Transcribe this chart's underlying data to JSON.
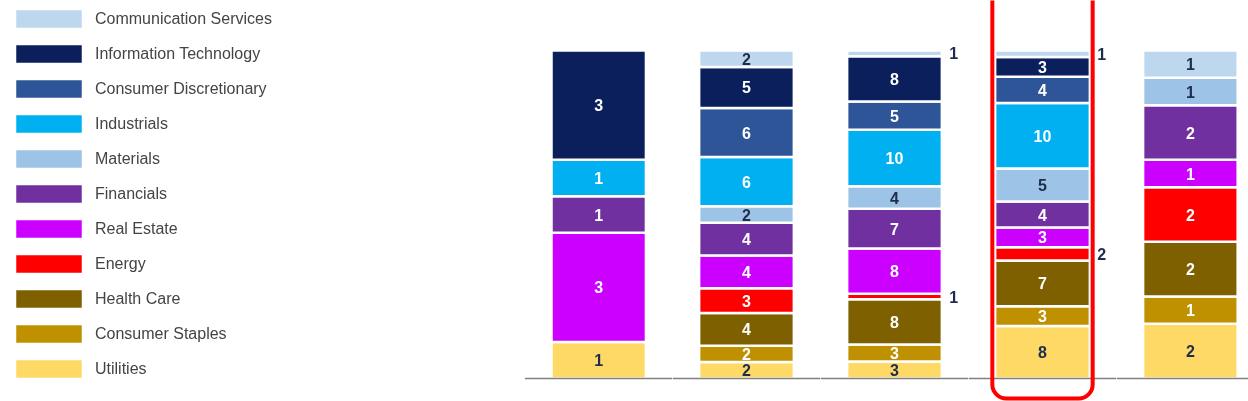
{
  "chart_data": [
    {
      "type": "bar",
      "stacked": true,
      "data_labels": true,
      "legend": "left",
      "tick_labels": false,
      "categories": [
        null
      ],
      "ylim": [
        0,
        9
      ],
      "series": [
        {
          "name": "Utilities",
          "color": "#ffd966",
          "values": [
            1
          ]
        },
        {
          "name": "Consumer Staples",
          "color": "#bf9000",
          "values": [
            null
          ]
        },
        {
          "name": "Health Care",
          "color": "#7f6000",
          "values": [
            null
          ]
        },
        {
          "name": "Energy",
          "color": "#ff0000",
          "values": [
            null
          ]
        },
        {
          "name": "Real Estate",
          "color": "#cc00ff",
          "values": [
            3
          ]
        },
        {
          "name": "Financials",
          "color": "#7030a0",
          "values": [
            1
          ]
        },
        {
          "name": "Materials",
          "color": "#9dc3e6",
          "values": [
            null
          ]
        },
        {
          "name": "Industrials",
          "color": "#00b0f0",
          "values": [
            1
          ]
        },
        {
          "name": "Consumer Discretionary",
          "color": "#2e5597",
          "values": [
            null
          ]
        },
        {
          "name": "Information Technology",
          "color": "#0a1f5c",
          "values": [
            3
          ]
        },
        {
          "name": "Communication Services",
          "color": "#bdd7ee",
          "values": [
            null
          ]
        }
      ]
    },
    {
      "type": "bar",
      "stacked": true,
      "data_labels": true,
      "tick_labels": false,
      "categories": [
        null
      ],
      "ylim": [
        0,
        40
      ],
      "series": [
        {
          "color": "#ffd966",
          "values": [
            2
          ]
        },
        {
          "color": "#bf9000",
          "values": [
            2
          ]
        },
        {
          "color": "#7f6000",
          "values": [
            4
          ]
        },
        {
          "color": "#ff0000",
          "values": [
            3
          ]
        },
        {
          "color": "#cc00ff",
          "values": [
            4
          ]
        },
        {
          "color": "#7030a0",
          "values": [
            4
          ]
        },
        {
          "color": "#9dc3e6",
          "values": [
            2
          ]
        },
        {
          "color": "#00b0f0",
          "values": [
            6
          ]
        },
        {
          "color": "#2e5597",
          "values": [
            6
          ]
        },
        {
          "color": "#0a1f5c",
          "values": [
            5
          ]
        },
        {
          "color": "#bdd7ee",
          "values": [
            2
          ]
        }
      ]
    },
    {
      "type": "bar",
      "stacked": true,
      "data_labels": true,
      "tick_labels": false,
      "categories": [
        null
      ],
      "ylim": [
        0,
        58
      ],
      "series": [
        {
          "color": "#ffd966",
          "values": [
            3
          ]
        },
        {
          "color": "#bf9000",
          "values": [
            3
          ]
        },
        {
          "color": "#7f6000",
          "values": [
            8
          ]
        },
        {
          "color": "#ff0000",
          "values": [
            1
          ]
        },
        {
          "color": "#cc00ff",
          "values": [
            8
          ]
        },
        {
          "color": "#7030a0",
          "values": [
            7
          ]
        },
        {
          "color": "#9dc3e6",
          "values": [
            4
          ]
        },
        {
          "color": "#00b0f0",
          "values": [
            10
          ]
        },
        {
          "color": "#2e5597",
          "values": [
            5
          ]
        },
        {
          "color": "#0a1f5c",
          "values": [
            8
          ]
        },
        {
          "color": "#bdd7ee",
          "values": [
            1
          ]
        }
      ]
    },
    {
      "type": "bar",
      "stacked": true,
      "data_labels": true,
      "tick_labels": false,
      "categories": [
        null
      ],
      "ylim": [
        0,
        50
      ],
      "series": [
        {
          "color": "#ffd966",
          "values": [
            8
          ]
        },
        {
          "color": "#bf9000",
          "values": [
            3
          ]
        },
        {
          "color": "#7f6000",
          "values": [
            7
          ]
        },
        {
          "color": "#ff0000",
          "values": [
            2
          ]
        },
        {
          "color": "#cc00ff",
          "values": [
            3
          ]
        },
        {
          "color": "#7030a0",
          "values": [
            4
          ]
        },
        {
          "color": "#9dc3e6",
          "values": [
            5
          ]
        },
        {
          "color": "#00b0f0",
          "values": [
            10
          ]
        },
        {
          "color": "#2e5597",
          "values": [
            4
          ]
        },
        {
          "color": "#0a1f5c",
          "values": [
            3
          ]
        },
        {
          "color": "#bdd7ee",
          "values": [
            1
          ]
        }
      ]
    },
    {
      "type": "bar",
      "stacked": true,
      "data_labels": true,
      "tick_labels": false,
      "categories": [
        null
      ],
      "ylim": [
        0,
        12
      ],
      "series": [
        {
          "color": "#ffd966",
          "values": [
            2
          ]
        },
        {
          "color": "#bf9000",
          "values": [
            1
          ]
        },
        {
          "color": "#7f6000",
          "values": [
            2
          ]
        },
        {
          "color": "#ff0000",
          "values": [
            2
          ]
        },
        {
          "color": "#cc00ff",
          "values": [
            1
          ]
        },
        {
          "color": "#7030a0",
          "values": [
            2
          ]
        },
        {
          "color": "#9dc3e6",
          "values": [
            1
          ]
        },
        {
          "color": "#bdd7ee",
          "values": [
            1
          ]
        }
      ]
    }
  ]
}
